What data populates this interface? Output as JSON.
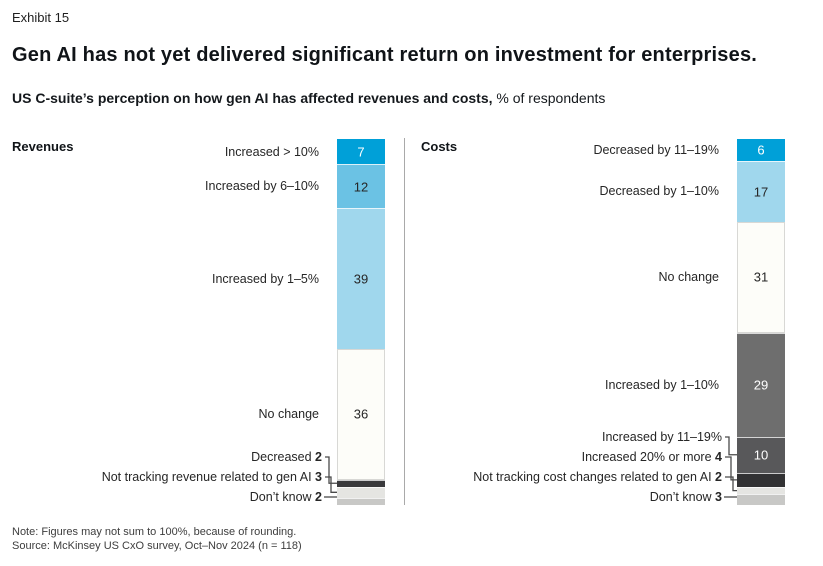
{
  "header": {
    "exhibit": "Exhibit 15",
    "title": "Gen AI has not yet delivered significant return on investment for enterprises.",
    "subtitle_bold": "US C-suite’s perception on how gen AI has affected revenues and costs,",
    "subtitle_normal": "% of respondents"
  },
  "footer": {
    "note": "Note: Figures may not sum to 100%, because of rounding.",
    "source": "Source: McKinsey US CxO survey, Oct–Nov 2024 (n = 118)"
  },
  "colors": {
    "accent_cyan": "#00a0d8",
    "medium_blue": "#6bc2e4",
    "light_blue": "#a0d7ed",
    "white_segment": "#fdfdf9",
    "dark_charcoal": "#3a3a3c",
    "medium_gray": "#6e6e6e",
    "deep_gray": "#58585a",
    "near_black": "#323234",
    "pale_gray": "#e5e5e2",
    "silver_gray": "#c8c8c6",
    "divider_gray": "#a9a9a9"
  },
  "chart_data": [
    {
      "type": "bar",
      "stacked": true,
      "title": "Revenues",
      "unit": "% of respondents",
      "segments": [
        {
          "label": "Increased > 10%",
          "value": 7,
          "color": "#00a0d8",
          "label_mode": "inline",
          "value_mode": "bar",
          "value_color": "#ffffff"
        },
        {
          "label": "Increased by 6–10%",
          "value": 12,
          "color": "#6bc2e4",
          "label_mode": "inline",
          "value_mode": "bar",
          "value_color": "#262626"
        },
        {
          "label": "Increased by 1–5%",
          "value": 39,
          "color": "#a0d7ed",
          "label_mode": "inline",
          "value_mode": "bar",
          "value_color": "#262626"
        },
        {
          "label": "No change",
          "value": 36,
          "color": "#fdfdf9",
          "bordered": true,
          "label_mode": "inline",
          "value_mode": "bar",
          "value_color": "#262626"
        },
        {
          "label": "Decreased",
          "value": 2,
          "color": "#3a3a3c",
          "label_mode": "callout",
          "value_mode": "label"
        },
        {
          "label": "Not tracking revenue related to gen AI",
          "value": 3,
          "color": "#e5e5e2",
          "label_mode": "callout",
          "value_mode": "label"
        },
        {
          "label": "Don’t know",
          "value": 2,
          "color": "#c8c8c6",
          "label_mode": "callout",
          "value_mode": "label"
        }
      ]
    },
    {
      "type": "bar",
      "stacked": true,
      "title": "Costs",
      "unit": "% of respondents",
      "segments": [
        {
          "label": "Decreased by 11–19%",
          "value": 6,
          "color": "#00a0d8",
          "label_mode": "inline",
          "value_mode": "bar",
          "value_color": "#ffffff"
        },
        {
          "label": "Decreased by 1–10%",
          "value": 17,
          "color": "#a0d7ed",
          "label_mode": "inline",
          "value_mode": "bar",
          "value_color": "#262626"
        },
        {
          "label": "No change",
          "value": 31,
          "color": "#fdfdf9",
          "bordered": true,
          "label_mode": "inline",
          "value_mode": "bar",
          "value_color": "#262626"
        },
        {
          "label": "Increased by 1–10%",
          "value": 29,
          "color": "#6e6e6e",
          "label_mode": "inline",
          "value_mode": "bar",
          "value_color": "#ffffff"
        },
        {
          "label": "Increased by 11–19%",
          "value": 10,
          "color": "#58585a",
          "label_mode": "callout",
          "value_mode": "bar",
          "value_color": "#ffffff"
        },
        {
          "label": "Increased 20% or more",
          "value": 4,
          "color": "#323234",
          "label_mode": "callout",
          "value_mode": "label"
        },
        {
          "label": "Not tracking cost changes related to gen AI",
          "value": 2,
          "color": "#e5e5e2",
          "label_mode": "callout",
          "value_mode": "label"
        },
        {
          "label": "Don’t know",
          "value": 3,
          "color": "#c8c8c6",
          "label_mode": "callout",
          "value_mode": "label"
        }
      ]
    }
  ]
}
